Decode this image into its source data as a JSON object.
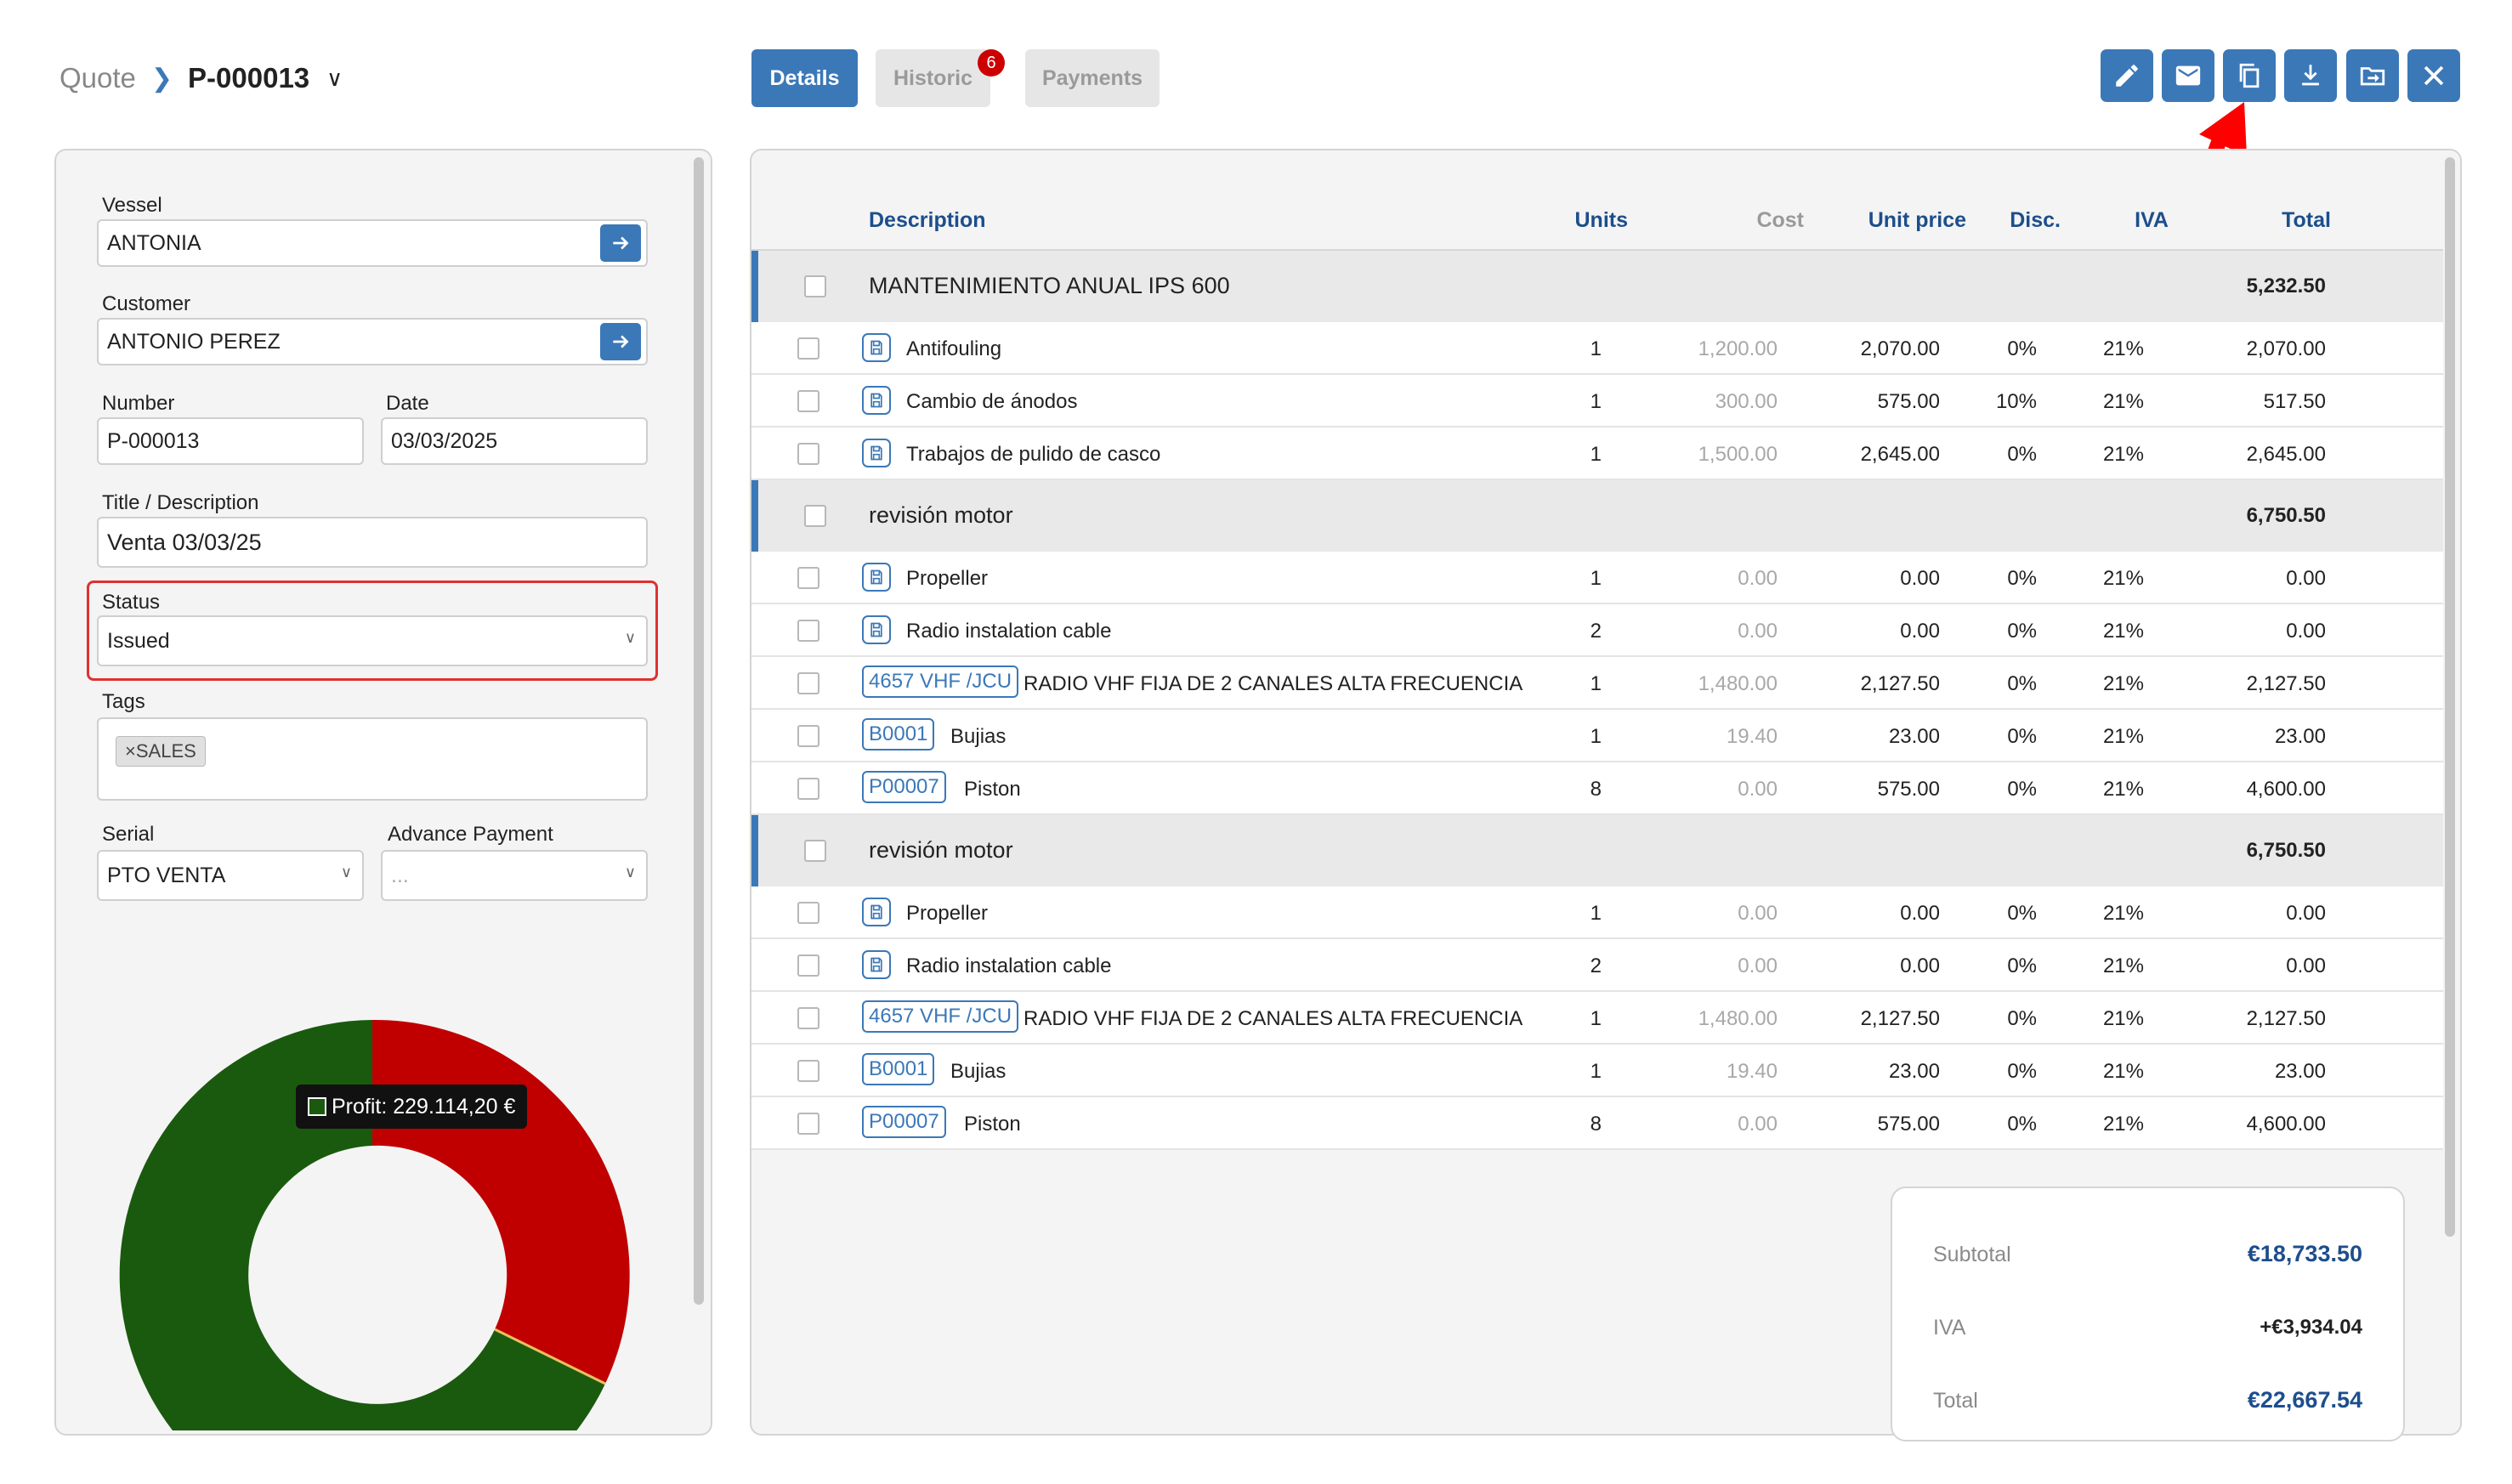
{
  "breadcrumb": {
    "parent": "Quote",
    "current": "P-000013"
  },
  "tabs": [
    {
      "label": "Details",
      "active": true
    },
    {
      "label": "Historic",
      "active": false,
      "badge": "6"
    },
    {
      "label": "Payments",
      "active": false
    }
  ],
  "actions": [
    "edit-icon",
    "mail-icon",
    "copy-icon",
    "download-icon",
    "folder-import-icon",
    "close-icon"
  ],
  "form": {
    "vessel_label": "Vessel",
    "vessel_value": "ANTONIA",
    "customer_label": "Customer",
    "customer_value": "ANTONIO PEREZ",
    "number_label": "Number",
    "number_value": "P-000013",
    "date_label": "Date",
    "date_value": "03/03/2025",
    "title_label": "Title / Description",
    "title_value": "Venta 03/03/25",
    "status_label": "Status",
    "status_value": "Issued",
    "tags_label": "Tags",
    "tag": "SALES",
    "tag_remove": "×",
    "serial_label": "Serial",
    "serial_value": "PTO VENTA",
    "advance_label": "Advance Payment",
    "advance_value": "..."
  },
  "chart": {
    "tooltip": "Profit: 229.114,20 €",
    "profit_color": "#1a5a0e",
    "cost_color": "#c00000"
  },
  "table": {
    "headers": {
      "description": "Description",
      "units": "Units",
      "cost": "Cost",
      "unit_price": "Unit price",
      "disc": "Disc.",
      "iva": "IVA",
      "total": "Total"
    },
    "groups": [
      {
        "name": "MANTENIMIENTO ANUAL IPS 600",
        "total": "5,232.50",
        "items": [
          {
            "code": "",
            "desc": "Antifouling",
            "units": "1",
            "cost": "1,200.00",
            "price": "2,070.00",
            "disc": "0%",
            "iva": "21%",
            "total": "2,070.00"
          },
          {
            "code": "",
            "desc": "Cambio de ánodos",
            "units": "1",
            "cost": "300.00",
            "price": "575.00",
            "disc": "10%",
            "iva": "21%",
            "total": "517.50"
          },
          {
            "code": "",
            "desc": "Trabajos de pulido de casco",
            "units": "1",
            "cost": "1,500.00",
            "price": "2,645.00",
            "disc": "0%",
            "iva": "21%",
            "total": "2,645.00"
          }
        ]
      },
      {
        "name": "revisión motor",
        "total": "6,750.50",
        "items": [
          {
            "code": "",
            "desc": "Propeller",
            "units": "1",
            "cost": "0.00",
            "price": "0.00",
            "disc": "0%",
            "iva": "21%",
            "total": "0.00"
          },
          {
            "code": "",
            "desc": "Radio instalation cable",
            "units": "2",
            "cost": "0.00",
            "price": "0.00",
            "disc": "0%",
            "iva": "21%",
            "total": "0.00"
          },
          {
            "code": "4657 VHF /JCU",
            "desc": "RADIO VHF FIJA DE 2 CANALES ALTA FRECUENCIA",
            "units": "1",
            "cost": "1,480.00",
            "price": "2,127.50",
            "disc": "0%",
            "iva": "21%",
            "total": "2,127.50"
          },
          {
            "code": "B0001",
            "desc": "Bujias",
            "units": "1",
            "cost": "19.40",
            "price": "23.00",
            "disc": "0%",
            "iva": "21%",
            "total": "23.00"
          },
          {
            "code": "P00007",
            "desc": "Piston",
            "units": "8",
            "cost": "0.00",
            "price": "575.00",
            "disc": "0%",
            "iva": "21%",
            "total": "4,600.00"
          }
        ]
      },
      {
        "name": "revisión motor",
        "total": "6,750.50",
        "items": [
          {
            "code": "",
            "desc": "Propeller",
            "units": "1",
            "cost": "0.00",
            "price": "0.00",
            "disc": "0%",
            "iva": "21%",
            "total": "0.00"
          },
          {
            "code": "",
            "desc": "Radio instalation cable",
            "units": "2",
            "cost": "0.00",
            "price": "0.00",
            "disc": "0%",
            "iva": "21%",
            "total": "0.00"
          },
          {
            "code": "4657 VHF /JCU",
            "desc": "RADIO VHF FIJA DE 2 CANALES ALTA FRECUENCIA",
            "units": "1",
            "cost": "1,480.00",
            "price": "2,127.50",
            "disc": "0%",
            "iva": "21%",
            "total": "2,127.50"
          },
          {
            "code": "B0001",
            "desc": "Bujias",
            "units": "1",
            "cost": "19.40",
            "price": "23.00",
            "disc": "0%",
            "iva": "21%",
            "total": "23.00"
          },
          {
            "code": "P00007",
            "desc": "Piston",
            "units": "8",
            "cost": "0.00",
            "price": "575.00",
            "disc": "0%",
            "iva": "21%",
            "total": "4,600.00"
          }
        ]
      }
    ]
  },
  "totals": {
    "subtotal_label": "Subtotal",
    "subtotal_value": "€18,733.50",
    "iva_label": "IVA",
    "iva_value": "+€3,934.04",
    "total_label": "Total",
    "total_value": "€22,667.54"
  },
  "colors": {
    "accent": "#3b78b8",
    "heading": "#1d4e8c",
    "annotation": "#ff0000"
  }
}
